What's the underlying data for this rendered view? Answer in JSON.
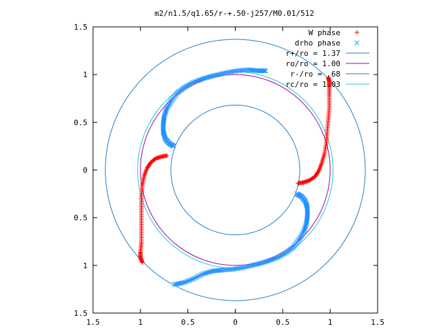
{
  "chart_data": {
    "type": "scatter",
    "title": "m2/n1.5/q1.65/r-+.50-j257/M0.01/512",
    "xlabel": "",
    "ylabel": "",
    "xlim": [
      -1.5,
      1.5
    ],
    "ylim": [
      -1.5,
      1.5
    ],
    "x_ticks": [
      -1.5,
      -1,
      -0.5,
      0,
      0.5,
      1,
      1.5
    ],
    "x_tick_labels": [
      "1.5",
      "1",
      "0.5",
      "0",
      "0.5",
      "1",
      "1.5"
    ],
    "y_ticks": [
      1.5,
      1,
      0.5,
      0,
      -0.5,
      -1,
      -1.5
    ],
    "y_tick_labels": [
      "1.5",
      "1",
      "0.5",
      "0",
      "0.5",
      "1",
      "1.5"
    ],
    "grid": false,
    "legend_position": "top-right",
    "series": [
      {
        "name": "W phase",
        "kind": "points",
        "marker": "+",
        "color": "#ff0000",
        "arms": [
          [
            [
              -0.72,
              0.15
            ],
            [
              -0.78,
              0.14
            ],
            [
              -0.84,
              0.12
            ],
            [
              -0.89,
              0.08
            ],
            [
              -0.93,
              0.02
            ],
            [
              -0.96,
              -0.06
            ],
            [
              -0.98,
              -0.16
            ],
            [
              -0.99,
              -0.28
            ],
            [
              -0.99,
              -0.4
            ],
            [
              -0.99,
              -0.52
            ],
            [
              -0.99,
              -0.64
            ],
            [
              -0.99,
              -0.76
            ],
            [
              -1.0,
              -0.86
            ],
            [
              -1.0,
              -0.92
            ],
            [
              -0.98,
              -0.97
            ]
          ],
          [
            [
              0.66,
              -0.14
            ],
            [
              0.72,
              -0.13
            ],
            [
              0.78,
              -0.11
            ],
            [
              0.84,
              -0.07
            ],
            [
              0.88,
              -0.01
            ],
            [
              0.91,
              0.07
            ],
            [
              0.94,
              0.17
            ],
            [
              0.96,
              0.29
            ],
            [
              0.97,
              0.41
            ],
            [
              0.98,
              0.53
            ],
            [
              0.99,
              0.65
            ],
            [
              0.99,
              0.77
            ],
            [
              0.99,
              0.87
            ],
            [
              0.99,
              0.93
            ],
            [
              0.98,
              0.97
            ]
          ]
        ]
      },
      {
        "name": "drho phase",
        "kind": "points",
        "marker": "x",
        "color": "#1e90ff",
        "arms": [
          [
            [
              -0.65,
              0.25
            ],
            [
              -0.7,
              0.28
            ],
            [
              -0.74,
              0.33
            ],
            [
              -0.76,
              0.4
            ],
            [
              -0.76,
              0.48
            ],
            [
              -0.75,
              0.56
            ],
            [
              -0.72,
              0.65
            ],
            [
              -0.67,
              0.73
            ],
            [
              -0.61,
              0.81
            ],
            [
              -0.53,
              0.87
            ],
            [
              -0.44,
              0.92
            ],
            [
              -0.33,
              0.96
            ],
            [
              -0.22,
              0.99
            ],
            [
              -0.1,
              1.02
            ],
            [
              0.02,
              1.04
            ],
            [
              0.14,
              1.05
            ],
            [
              0.24,
              1.04
            ],
            [
              0.32,
              1.04
            ]
          ],
          [
            [
              0.65,
              -0.25
            ],
            [
              0.7,
              -0.28
            ],
            [
              0.74,
              -0.33
            ],
            [
              0.76,
              -0.4
            ],
            [
              0.76,
              -0.48
            ],
            [
              0.75,
              -0.56
            ],
            [
              0.72,
              -0.65
            ],
            [
              0.67,
              -0.73
            ],
            [
              0.61,
              -0.81
            ],
            [
              0.53,
              -0.87
            ],
            [
              0.44,
              -0.92
            ],
            [
              0.33,
              -0.96
            ],
            [
              0.22,
              -0.99
            ],
            [
              0.1,
              -1.02
            ],
            [
              -0.02,
              -1.04
            ],
            [
              -0.14,
              -1.05
            ],
            [
              -0.24,
              -1.06
            ],
            [
              -0.34,
              -1.09
            ],
            [
              -0.44,
              -1.14
            ],
            [
              -0.54,
              -1.18
            ],
            [
              -0.64,
              -1.2
            ]
          ]
        ]
      },
      {
        "name": "r+/ro = 1.37",
        "kind": "circle",
        "radius": 1.37,
        "color": "#1e7fc8"
      },
      {
        "name": "ro/ro = 1.00",
        "kind": "circle",
        "radius": 1.0,
        "color": "#a000a0"
      },
      {
        "name": "r-/ro = .68",
        "kind": "circle",
        "radius": 0.68,
        "color": "#1e7fc8"
      },
      {
        "name": "rc/ro = 1.03",
        "kind": "circle",
        "radius": 1.03,
        "color": "#20c8d8"
      }
    ]
  }
}
